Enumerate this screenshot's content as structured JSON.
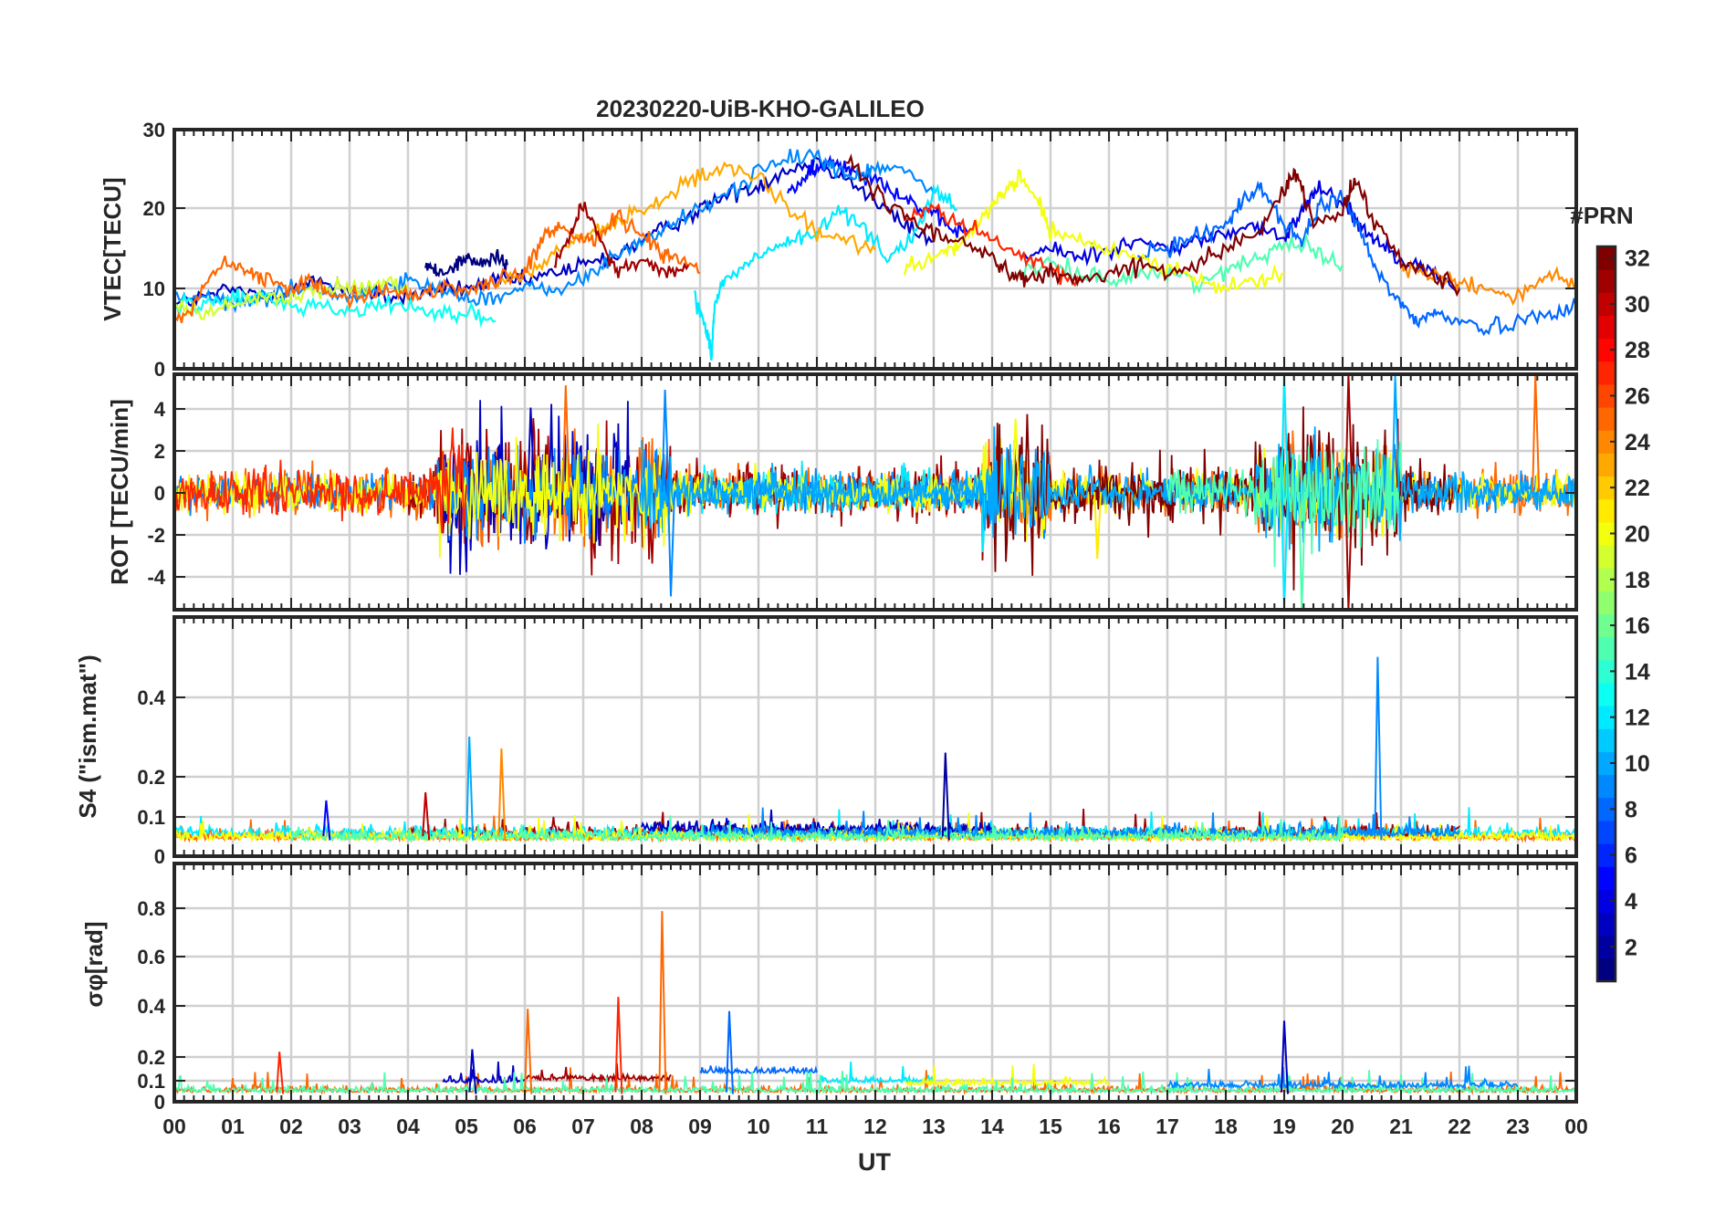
{
  "chart_data": {
    "type": "line",
    "title": "20230220-UiB-KHO-GALILEO",
    "xlabel": "UT",
    "x_ticks": [
      "00",
      "01",
      "02",
      "03",
      "04",
      "05",
      "06",
      "07",
      "08",
      "09",
      "10",
      "11",
      "12",
      "13",
      "14",
      "15",
      "16",
      "17",
      "18",
      "19",
      "20",
      "21",
      "22",
      "23",
      "00"
    ],
    "xlim": [
      0,
      24
    ],
    "colorbar": {
      "label": "#PRN",
      "range": [
        1,
        32
      ],
      "ticks": [
        "2",
        "4",
        "6",
        "8",
        "10",
        "12",
        "14",
        "16",
        "18",
        "20",
        "22",
        "24",
        "26",
        "28",
        "30",
        "32"
      ]
    },
    "panels": [
      {
        "id": "vtec",
        "ylabel": "VTEC[TECU]",
        "ylim": [
          0,
          30
        ],
        "yticks": [
          "0",
          "10",
          "20",
          "30"
        ],
        "series": [
          {
            "prn": 3,
            "x": [
              0,
              0.5,
              1,
              1.5,
              2,
              2.5,
              3,
              3.5,
              4,
              4.5,
              5,
              5.5,
              6,
              6.5,
              7,
              7.5,
              8,
              8.5,
              9,
              9.5,
              10,
              10.5,
              11,
              11.5,
              12,
              12.5,
              13
            ],
            "y": [
              8,
              9,
              10,
              9,
              10,
              11,
              10,
              9,
              9,
              10,
              10,
              11,
              11,
              12,
              13,
              14,
              16,
              18,
              20,
              22,
              23,
              25,
              26,
              24,
              21,
              18,
              16
            ]
          },
          {
            "prn": 1,
            "x": [
              4.3,
              4.5,
              4.8,
              5,
              5.2,
              5.5,
              5.7
            ],
            "y": [
              13,
              12,
              13,
              14,
              13,
              14,
              13
            ]
          },
          {
            "prn": 5,
            "x": [
              10.5,
              10.8,
              11,
              11.3,
              11.6,
              12,
              12.4,
              12.8,
              13.2,
              13.6
            ],
            "y": [
              22,
              24,
              25,
              26,
              25,
              24,
              22,
              20,
              18,
              17
            ]
          },
          {
            "prn": 4,
            "x": [
              14.5,
              15,
              15.5,
              16,
              16.5,
              17,
              17.5,
              18,
              18.5,
              19,
              19.3,
              19.6,
              20,
              20.3,
              20.6,
              21,
              21.5,
              22
            ],
            "y": [
              14,
              15,
              14,
              15,
              16,
              15,
              16,
              17,
              18,
              16,
              20,
              23,
              21,
              18,
              16,
              14,
              12,
              10
            ]
          },
          {
            "prn": 9,
            "x": [
              0,
              0.5,
              1,
              1.5,
              2,
              2.5,
              3,
              3.5,
              4,
              4.5,
              5,
              5.5,
              6,
              6.5,
              7,
              7.5,
              8,
              8.5,
              9,
              9.5,
              10,
              10.5,
              11,
              11.3,
              11.6,
              12,
              12.5,
              13
            ],
            "y": [
              9,
              9,
              8,
              9,
              10,
              10,
              9,
              10,
              11,
              10,
              9,
              9,
              10,
              10,
              11,
              14,
              16,
              18,
              20,
              22,
              25,
              26,
              27,
              25,
              24,
              25,
              25,
              22
            ]
          },
          {
            "prn": 8,
            "x": [
              16.5,
              17,
              17.5,
              18,
              18.3,
              18.6,
              19,
              19.3,
              19.6,
              20,
              20.3,
              20.6,
              21,
              21.3,
              21.6,
              22,
              22.5,
              23,
              23.5,
              24
            ],
            "y": [
              14,
              15,
              17,
              18,
              21,
              23,
              18,
              16,
              20,
              22,
              17,
              12,
              8,
              6,
              7,
              6,
              5,
              6,
              7,
              8
            ]
          },
          {
            "prn": 12,
            "x": [
              8.9,
              9.1,
              9.2,
              9.25,
              9.4,
              9.8,
              10.2,
              10.6,
              11,
              11.4,
              11.8,
              12.2,
              12.6,
              13,
              13.4
            ],
            "y": [
              9,
              5,
              2,
              8,
              11,
              13,
              15,
              16,
              17,
              20,
              18,
              14,
              16,
              22,
              20
            ]
          },
          {
            "prn": 13,
            "x": [
              0,
              0.5,
              1,
              1.5,
              2,
              2.5,
              3,
              3.5,
              4,
              4.5,
              5,
              5.5
            ],
            "y": [
              8,
              8,
              9,
              9,
              8,
              8,
              7,
              8,
              8,
              7,
              7,
              6
            ]
          },
          {
            "prn": 15,
            "x": [
              14.5,
              15,
              15.5,
              16,
              16.5,
              17,
              17.5,
              18,
              18.5,
              19,
              19.5,
              20
            ],
            "y": [
              12,
              13,
              12,
              11,
              12,
              12,
              11,
              12,
              14,
              16,
              15,
              13
            ]
          },
          {
            "prn": 19,
            "x": [
              0,
              0.5,
              1,
              1.5,
              2,
              2.5,
              3,
              3.5,
              4
            ],
            "y": [
              8,
              7,
              8,
              9,
              9,
              10,
              10,
              11,
              10
            ]
          },
          {
            "prn": 20,
            "x": [
              12.5,
              13,
              13.3,
              13.6,
              14,
              14.2,
              14.5,
              14.8,
              15,
              15.5,
              16,
              16.5,
              17,
              17.5,
              18,
              18.5,
              19
            ],
            "y": [
              13,
              14,
              15,
              17,
              20,
              22,
              24,
              21,
              17,
              16,
              15,
              14,
              13,
              11,
              10,
              11,
              12
            ]
          },
          {
            "prn": 23,
            "x": [
              5.5,
              6,
              6.5,
              7,
              7.5,
              8,
              8.5,
              9,
              9.5,
              10,
              10.5,
              11,
              11.5,
              12
            ],
            "y": [
              10,
              12,
              14,
              17,
              18,
              20,
              22,
              24,
              25,
              24,
              20,
              17,
              16,
              15
            ]
          },
          {
            "prn": 24,
            "x": [
              21,
              21.5,
              22,
              22.5,
              23,
              23.5,
              24
            ],
            "y": [
              13,
              12,
              11,
              10,
              9,
              12,
              10
            ]
          },
          {
            "prn": 25,
            "x": [
              0,
              0.3,
              0.6,
              1,
              1.3,
              1.6,
              2,
              2.3,
              2.6,
              3,
              3.5,
              4,
              4.5,
              5,
              5.5,
              6,
              6.3,
              6.6,
              7,
              7.3,
              7.6,
              8,
              8.3,
              8.6,
              9
            ],
            "y": [
              6,
              7,
              12,
              13,
              12,
              11,
              10,
              11,
              10,
              9,
              10,
              9,
              10,
              10,
              11,
              12,
              16,
              18,
              16,
              17,
              19,
              17,
              15,
              14,
              12
            ]
          },
          {
            "prn": 27,
            "x": [
              12.5,
              13,
              13.5,
              14,
              14.5,
              15,
              15.5
            ],
            "y": [
              19,
              20,
              18,
              16,
              14,
              12,
              11
            ]
          },
          {
            "prn": 31,
            "x": [
              6.5,
              6.8,
              7,
              7.3,
              7.6,
              8,
              8.4,
              8.8
            ],
            "y": [
              13,
              17,
              21,
              16,
              12,
              14,
              12,
              13
            ]
          },
          {
            "prn": 32,
            "x": [
              11.5,
              12,
              12.5,
              13,
              13.5,
              14,
              14.3,
              14.6,
              15,
              15.5,
              16,
              16.5,
              17,
              17.5,
              18,
              18.5,
              19,
              19.2,
              19.5,
              20,
              20.2,
              20.5,
              21,
              21.5,
              22
            ],
            "y": [
              26,
              22,
              19,
              17,
              16,
              14,
              12,
              11,
              12,
              11,
              12,
              13,
              12,
              13,
              15,
              17,
              22,
              25,
              18,
              20,
              24,
              19,
              14,
              12,
              10
            ]
          }
        ]
      },
      {
        "id": "rot",
        "ylabel": "ROT [TECU/min]",
        "ylim": [
          -5.3,
          5.3
        ],
        "yticks": [
          "-4",
          "-2",
          "0",
          "2",
          "4"
        ],
        "spikes": [
          {
            "prn": 25,
            "x": 6.7,
            "y": 4.8
          },
          {
            "prn": 3,
            "x": 6.1,
            "y": 3.8
          },
          {
            "prn": 9,
            "x": 8.4,
            "y": 4.6
          },
          {
            "prn": 9,
            "x": 8.5,
            "y": -4.7
          },
          {
            "prn": 12,
            "x": 19.0,
            "y": 5.3
          },
          {
            "prn": 12,
            "x": 19.0,
            "y": -5.3
          },
          {
            "prn": 15,
            "x": 19.3,
            "y": -5.3
          },
          {
            "prn": 31,
            "x": 20.1,
            "y": 5.3
          },
          {
            "prn": 31,
            "x": 20.1,
            "y": -5.3
          },
          {
            "prn": 10,
            "x": 20.9,
            "y": 5.3
          },
          {
            "prn": 25,
            "x": 23.3,
            "y": 5.3
          },
          {
            "prn": 20,
            "x": 14.4,
            "y": 3.3
          },
          {
            "prn": 21,
            "x": 15.8,
            "y": -3.0
          }
        ]
      },
      {
        "id": "s4",
        "ylabel": "S4 (\"ism.mat\")",
        "ylim": [
          0,
          0.6
        ],
        "yticks": [
          "0",
          "0.1",
          "0.2",
          "0.4"
        ],
        "spikes": [
          {
            "prn": 10,
            "x": 5.05,
            "y": 0.3
          },
          {
            "prn": 24,
            "x": 5.6,
            "y": 0.27
          },
          {
            "prn": 2,
            "x": 13.2,
            "y": 0.26
          },
          {
            "prn": 9,
            "x": 20.6,
            "y": 0.5
          },
          {
            "prn": 30,
            "x": 4.3,
            "y": 0.16
          },
          {
            "prn": 5,
            "x": 2.6,
            "y": 0.14
          }
        ]
      },
      {
        "id": "sigma",
        "ylabel": "σφ[rad]",
        "ylim": [
          0,
          1
        ],
        "yticks": [
          "0",
          "0.1",
          "0.2",
          "0.4",
          "0.6",
          "0.8"
        ],
        "spikes": [
          {
            "prn": 25,
            "x": 8.35,
            "y": 0.8
          },
          {
            "prn": 25,
            "x": 6.05,
            "y": 0.39
          },
          {
            "prn": 27,
            "x": 7.6,
            "y": 0.44
          },
          {
            "prn": 8,
            "x": 9.5,
            "y": 0.38
          },
          {
            "prn": 3,
            "x": 19.0,
            "y": 0.34
          },
          {
            "prn": 27,
            "x": 1.8,
            "y": 0.21
          },
          {
            "prn": 3,
            "x": 5.1,
            "y": 0.22
          }
        ]
      }
    ]
  }
}
